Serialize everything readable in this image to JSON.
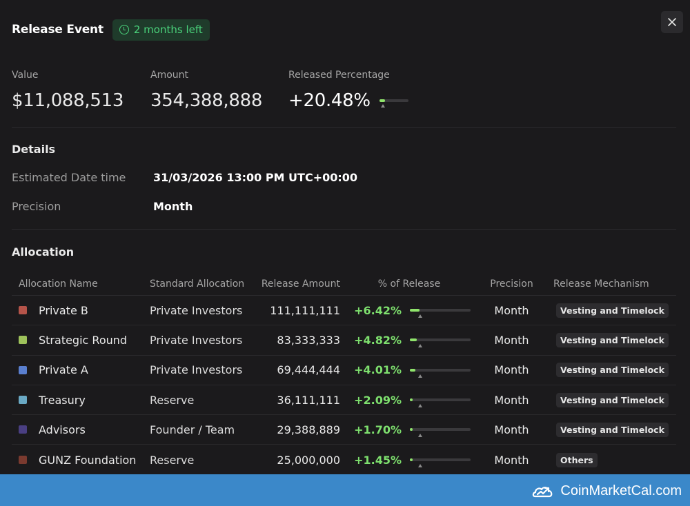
{
  "header": {
    "title": "Release Event",
    "badge": "2 months left"
  },
  "stats": {
    "value": {
      "label": "Value",
      "text": "$11,088,513"
    },
    "amount": {
      "label": "Amount",
      "text": "354,388,888"
    },
    "released": {
      "label": "Released Percentage",
      "text": "+20.48%",
      "fraction": 0.2048
    }
  },
  "details": {
    "title": "Details",
    "date_label": "Estimated Date time",
    "date_value": "31/03/2026 13:00 PM UTC+00:00",
    "precision_label": "Precision",
    "precision_value": "Month"
  },
  "allocation": {
    "title": "Allocation",
    "columns": [
      "Allocation Name",
      "Standard Allocation",
      "Release Amount",
      "% of Release",
      "Precision",
      "Release Mechanism"
    ],
    "rows": [
      {
        "name": "Private B",
        "color": "#b5544a",
        "standard": "Private Investors",
        "amount": "111,111,111",
        "pct": "+6.42%",
        "fraction": 0.0642,
        "precision": "Month",
        "mechanism": "Vesting and Timelock"
      },
      {
        "name": "Strategic Round",
        "color": "#9ec25b",
        "standard": "Private Investors",
        "amount": "83,333,333",
        "pct": "+4.82%",
        "fraction": 0.0482,
        "precision": "Month",
        "mechanism": "Vesting and Timelock"
      },
      {
        "name": "Private A",
        "color": "#5a7fcf",
        "standard": "Private Investors",
        "amount": "69,444,444",
        "pct": "+4.01%",
        "fraction": 0.0401,
        "precision": "Month",
        "mechanism": "Vesting and Timelock"
      },
      {
        "name": "Treasury",
        "color": "#6aa9c4",
        "standard": "Reserve",
        "amount": "36,111,111",
        "pct": "+2.09%",
        "fraction": 0.0209,
        "precision": "Month",
        "mechanism": "Vesting and Timelock"
      },
      {
        "name": "Advisors",
        "color": "#4a3f82",
        "standard": "Founder / Team",
        "amount": "29,388,889",
        "pct": "+1.70%",
        "fraction": 0.017,
        "precision": "Month",
        "mechanism": "Vesting and Timelock"
      },
      {
        "name": "GUNZ Foundation",
        "color": "#7a3a2f",
        "standard": "Reserve",
        "amount": "25,000,000",
        "pct": "+1.45%",
        "fraction": 0.0145,
        "precision": "Month",
        "mechanism": "Others"
      }
    ]
  },
  "footer": {
    "brand": "CoinMarketCal.com",
    "icon": "coinmarketcal-logo-icon"
  },
  "colors": {
    "accent_green": "#7ee06e",
    "footer_blue": "#3b88c9",
    "badge_bg": "#1f3b2b"
  }
}
